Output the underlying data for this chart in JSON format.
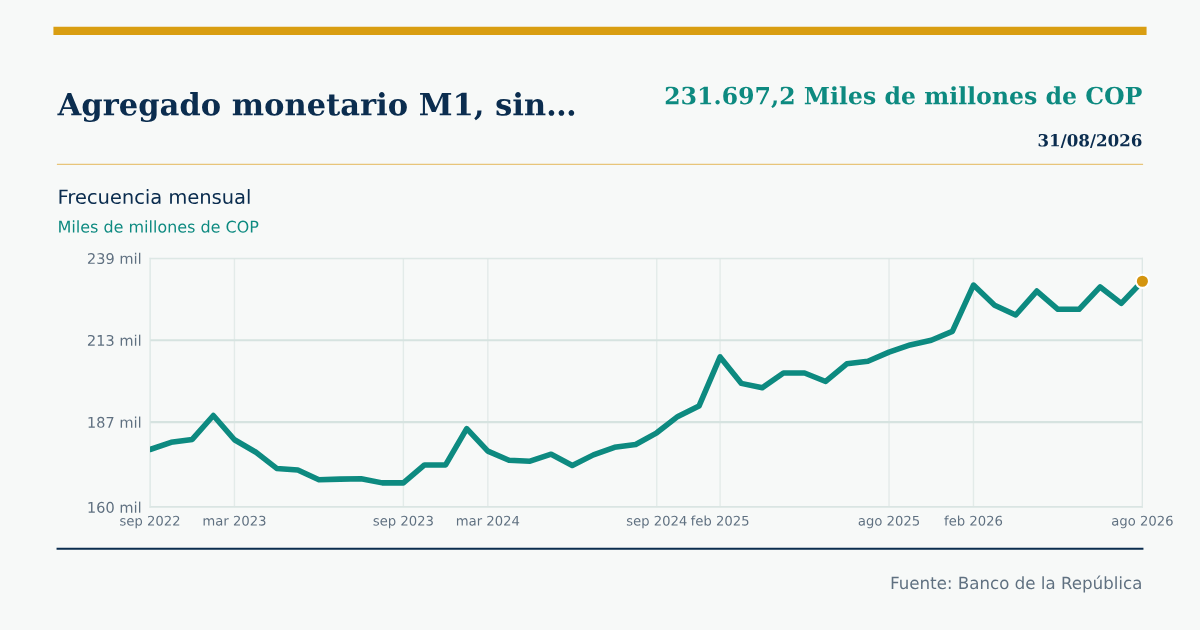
{
  "chart_data": {
    "type": "line",
    "title": "Agregado monetario M1, sin…",
    "subtitle": "Frecuencia mensual",
    "ylabel": "Miles de millones de COP",
    "categories": [
      "sep 2022",
      null,
      null,
      null,
      "mar 2023",
      null,
      null,
      null,
      null,
      null,
      null,
      null,
      "sep 2023",
      null,
      null,
      null,
      "mar 2024",
      null,
      null,
      null,
      null,
      null,
      null,
      null,
      "sep 2024",
      null,
      null,
      "feb 2025",
      null,
      null,
      null,
      null,
      null,
      null,
      null,
      "ago 2025",
      null,
      null,
      null,
      "feb 2026",
      null,
      null,
      null,
      null,
      null,
      null,
      null,
      "ago 2026"
    ],
    "series": [
      {
        "color": "#0d8a80",
        "line_style": "solid",
        "marker": "none",
        "values": [
          178.3,
          180.6,
          181.5,
          189.1,
          181.4,
          177.5,
          172.3,
          171.8,
          168.7,
          168.9,
          169.0,
          167.7,
          167.7,
          173.4,
          173.4,
          184.9,
          177.8,
          174.9,
          174.6,
          176.8,
          173.2,
          176.6,
          179.0,
          179.9,
          183.6,
          188.8,
          192.1,
          207.7,
          199.3,
          197.9,
          202.6,
          202.6,
          199.9,
          205.5,
          206.3,
          209.2,
          211.5,
          213.0,
          215.8,
          230.5,
          224.1,
          221.0,
          228.6,
          222.8,
          222.8,
          229.9,
          224.7,
          231.7
        ]
      },
      {
        "type": "scatter",
        "color": "#d4950f",
        "marker": "circle",
        "values": [
          null,
          null,
          null,
          null,
          null,
          null,
          null,
          null,
          null,
          null,
          null,
          null,
          null,
          null,
          null,
          null,
          null,
          null,
          null,
          null,
          null,
          null,
          null,
          null,
          null,
          null,
          null,
          null,
          null,
          null,
          null,
          null,
          null,
          null,
          null,
          null,
          null,
          null,
          null,
          null,
          null,
          null,
          null,
          null,
          null,
          null,
          null,
          231.7
        ]
      }
    ],
    "ylim": [
      160,
      239
    ],
    "yticks": [
      {
        "value": 160,
        "label": "160 mil"
      },
      {
        "value": 187,
        "label": "187 mil"
      },
      {
        "value": 213,
        "label": "213 mil"
      },
      {
        "value": 239,
        "label": "239 mil"
      }
    ],
    "grid": true,
    "annotations": [
      "231.697,2 Miles de millones de COP",
      "31/08/2026",
      "Fuente: Banco de la República"
    ]
  }
}
